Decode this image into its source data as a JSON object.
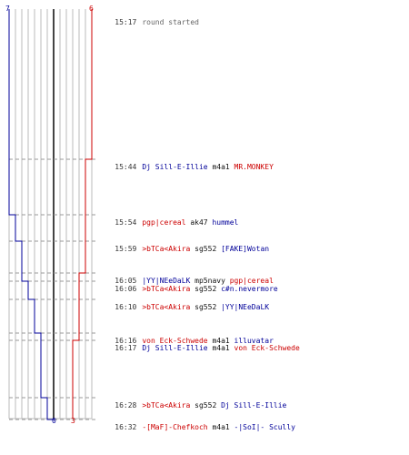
{
  "colors": {
    "red_team": "#cc0000",
    "blue_team": "#000099",
    "grid": "#bbbbbb",
    "center": "#444444",
    "dash": "#999999"
  },
  "header": {
    "blue_start": "7",
    "red_start": "6"
  },
  "footer": {
    "blue_end": "0",
    "red_end": "3"
  },
  "events": [
    {
      "time": "15:17",
      "note": "round started"
    },
    {
      "time": "15:44",
      "killer": "Dj Sill-E-Illie",
      "killer_team": "blue",
      "weapon": "m4a1",
      "victim": "MR.MONKEY",
      "victim_team": "red"
    },
    {
      "time": "15:54",
      "killer": "pgp|cereal",
      "killer_team": "red",
      "weapon": "ak47",
      "victim": "hummel",
      "victim_team": "blue"
    },
    {
      "time": "15:59",
      "killer": ">bTCa<Akira",
      "killer_team": "red",
      "weapon": "sg552",
      "victim": "[FAKE]Wotan",
      "victim_team": "blue"
    },
    {
      "time": "16:05",
      "killer": "|YY|NEeDaLK",
      "killer_team": "blue",
      "weapon": "mp5navy",
      "victim": "pgp|cereal",
      "victim_team": "red"
    },
    {
      "time": "16:06",
      "killer": ">bTCa<Akira",
      "killer_team": "red",
      "weapon": "sg552",
      "victim": "c#n.nevermore",
      "victim_team": "blue"
    },
    {
      "time": "16:10",
      "killer": ">bTCa<Akira",
      "killer_team": "red",
      "weapon": "sg552",
      "victim": "|YY|NEeDaLK",
      "victim_team": "blue"
    },
    {
      "time": "16:16",
      "killer": "von Eck-Schwede",
      "killer_team": "red",
      "weapon": "m4a1",
      "victim": "illuvatar",
      "victim_team": "blue"
    },
    {
      "time": "16:17",
      "killer": "Dj Sill-E-Illie",
      "killer_team": "blue",
      "weapon": "m4a1",
      "victim": "von Eck-Schwede",
      "victim_team": "red"
    },
    {
      "time": "16:28",
      "killer": ">bTCa<Akira",
      "killer_team": "red",
      "weapon": "sg552",
      "victim": "Dj Sill-E-Illie",
      "victim_team": "blue"
    },
    {
      "time": "16:32",
      "killer": "-[MaF]-Chefkoch",
      "killer_team": "red",
      "weapon": "m4a1",
      "victim": "-|SoI|- Scully",
      "victim_team": "blue"
    }
  ]
}
